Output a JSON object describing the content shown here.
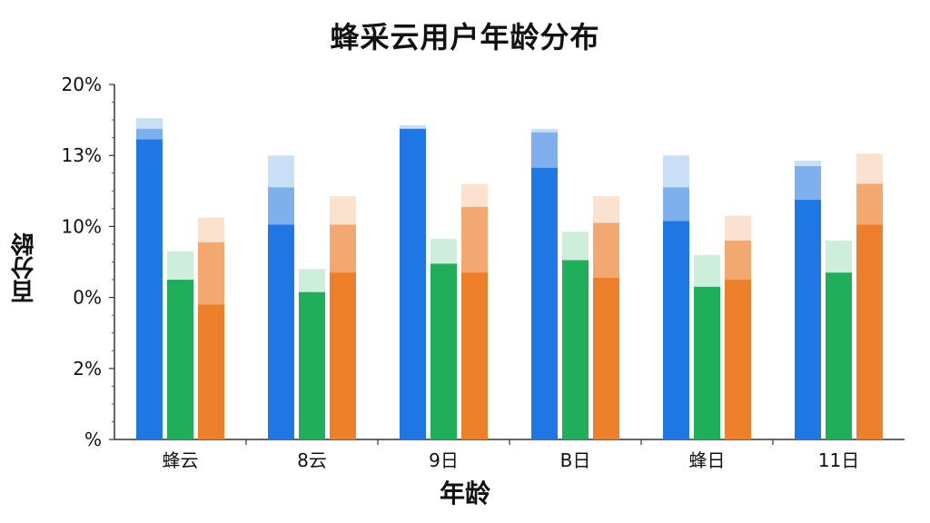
{
  "chart_data": {
    "type": "bar",
    "title": "蜂采云用户年龄分布",
    "xlabel": "年龄",
    "ylabel": "百分龄",
    "y_tick_labels": [
      "20%",
      "13%",
      "10%",
      "0%",
      "2%",
      "%"
    ],
    "categories": [
      "蜂云",
      "8云",
      "9日",
      "B日",
      "蜂日",
      "11日"
    ],
    "ylim": [
      0,
      100
    ],
    "grid": false,
    "legend": "none",
    "series": [
      {
        "color": "#1f77e6",
        "lighter_color": "#7fb0ee",
        "lightest_color": "#c9dff6",
        "values": [
          84.5,
          60.5,
          87.5,
          76.5,
          61.5,
          67.5
        ],
        "values_mid": [
          87.5,
          71,
          87.5,
          86.5,
          71,
          77
        ],
        "values_top": [
          90.5,
          80,
          88.5,
          87.5,
          80,
          78.5
        ]
      },
      {
        "color": "#1fae5a",
        "lighter_color": "#cdeedb",
        "values": [
          45,
          41.5,
          49.5,
          50.5,
          43,
          47
        ],
        "values_top": [
          53,
          48,
          56.5,
          58.5,
          52,
          56
        ]
      },
      {
        "color": "#ee7f2a",
        "lighter_color": "#f2a86f",
        "lightest_color": "#fbe2cf",
        "values": [
          38,
          47,
          47,
          45.5,
          45,
          60.5
        ],
        "values_mid": [
          55.5,
          60.5,
          65.5,
          61,
          56,
          72
        ],
        "values_top": [
          62.5,
          68.5,
          72,
          68.5,
          63,
          80.5
        ]
      }
    ]
  }
}
